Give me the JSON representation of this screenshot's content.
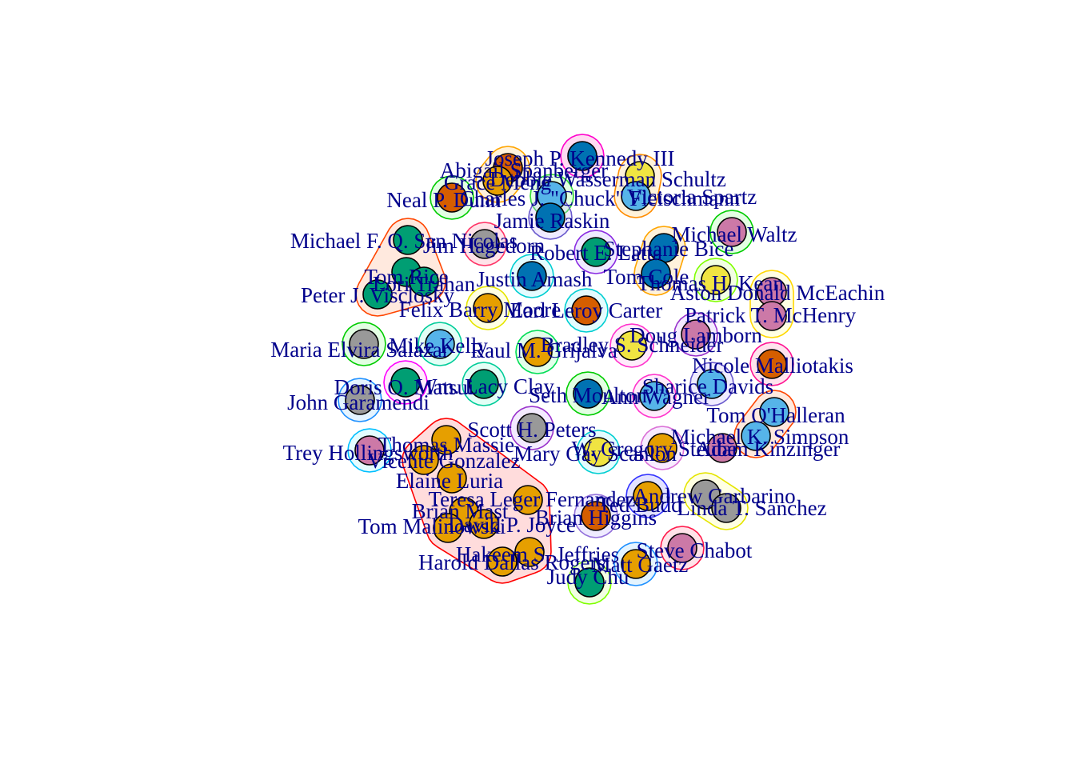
{
  "nodes": [
    {
      "id": "kennedy",
      "label": "Joseph P. Kennedy III",
      "color": "#0072b2"
    },
    {
      "id": "spanberger",
      "label": "Abigail Spanberger",
      "color": "#d55e00"
    },
    {
      "id": "wasserman",
      "label": "Debbie Wasserman Schultz",
      "color": "#f0e442"
    },
    {
      "id": "meng",
      "label": "Grace Meng",
      "color": "#e69f00"
    },
    {
      "id": "dunn",
      "label": "Neal P. Dunn",
      "color": "#d55e00"
    },
    {
      "id": "fleischmann",
      "label": "Charles J. \"Chuck\" Fleischmann",
      "color": "#56b4e9"
    },
    {
      "id": "spartz",
      "label": "Victoria Spartz",
      "color": "#56b4e9"
    },
    {
      "id": "raskin",
      "label": "Jamie Raskin",
      "color": "#0072b2"
    },
    {
      "id": "waltz",
      "label": "Michael Waltz",
      "color": "#cc79a7"
    },
    {
      "id": "sannicolas",
      "label": "Michael F. Q. San Nicolas",
      "color": "#009e73"
    },
    {
      "id": "hagedorn",
      "label": "Jim Hagedorn",
      "color": "#999999"
    },
    {
      "id": "stephanie",
      "label": "Stephanie Bice",
      "color": "#0072b2"
    },
    {
      "id": "latta",
      "label": "Robert E. Latta",
      "color": "#009e73"
    },
    {
      "id": "cole",
      "label": "Tom Cole",
      "color": "#0072b2"
    },
    {
      "id": "rice",
      "label": "Tom Rice",
      "color": "#009e73"
    },
    {
      "id": "trahan",
      "label": "Lori Trahan",
      "color": "#009e73"
    },
    {
      "id": "amash",
      "label": "Justin Amash",
      "color": "#0072b2"
    },
    {
      "id": "kean",
      "label": "Thomas H. Kean",
      "color": "#f0e442"
    },
    {
      "id": "mceachin",
      "label": "Aston Donald McEachin",
      "color": "#cc79a7"
    },
    {
      "id": "visclosky",
      "label": "Peter J. Visclosky",
      "color": "#009e73"
    },
    {
      "id": "barry",
      "label": "Felix Barry Moore",
      "color": "#e69f00"
    },
    {
      "id": "carter",
      "label": "Earl Leroy Carter",
      "color": "#d55e00"
    },
    {
      "id": "mchenry",
      "label": "Patrick T. McHenry",
      "color": "#cc79a7"
    },
    {
      "id": "lamborn",
      "label": "Doug Lamborn",
      "color": "#cc79a7"
    },
    {
      "id": "salazar",
      "label": "Maria Elvira Salazar",
      "color": "#999999"
    },
    {
      "id": "kelly",
      "label": "Mike Kelly",
      "color": "#56b4e9"
    },
    {
      "id": "grijalva",
      "label": "Raul M. Grijalva",
      "color": "#e69f00"
    },
    {
      "id": "schneider",
      "label": "Bradley S. Schneider",
      "color": "#f0e442"
    },
    {
      "id": "malliotakis",
      "label": "Nicole Malliotakis",
      "color": "#d55e00"
    },
    {
      "id": "davids",
      "label": "Sharice Davids",
      "color": "#56b4e9"
    },
    {
      "id": "watkins",
      "label": "Doris O. Matsui",
      "color": "#009e73"
    },
    {
      "id": "clay",
      "label": "Wm. Lacy Clay",
      "color": "#009e73"
    },
    {
      "id": "moulton",
      "label": "Seth Moulton",
      "color": "#0072b2"
    },
    {
      "id": "wagner",
      "label": "Ann Wagner",
      "color": "#56b4e9"
    },
    {
      "id": "garamendi",
      "label": "John Garamendi",
      "color": "#999999"
    },
    {
      "id": "ohalleran",
      "label": "Tom O'Halleran",
      "color": "#56b4e9"
    },
    {
      "id": "peters",
      "label": "Scott H. Peters",
      "color": "#999999"
    },
    {
      "id": "simpson",
      "label": "Michael K. Simpson",
      "color": "#56b4e9"
    },
    {
      "id": "massie",
      "label": "Thomas Massie",
      "color": "#e69f00"
    },
    {
      "id": "scanlon",
      "label": "Mary Gay Scanlon",
      "color": "#f0e442"
    },
    {
      "id": "grothman",
      "label": "W. Gregory Steube",
      "color": "#e69f00"
    },
    {
      "id": "kinzinger",
      "label": "Adam Kinzinger",
      "color": "#cc79a7"
    },
    {
      "id": "hollingsworth",
      "label": "Trey Hollingsworth",
      "color": "#cc79a7"
    },
    {
      "id": "gonzalez",
      "label": "Vicente Gonzalez",
      "color": "#e69f00"
    },
    {
      "id": "luria",
      "label": "Elaine Luria",
      "color": "#e69f00"
    },
    {
      "id": "garbarino",
      "label": "Andrew Garbarino",
      "color": "#999999"
    },
    {
      "id": "sanchez",
      "label": "Linda T. Sanchez",
      "color": "#999999"
    },
    {
      "id": "fernandez",
      "label": "Teresa Leger Fernandez",
      "color": "#e69f00"
    },
    {
      "id": "budd",
      "label": "Ted Budd",
      "color": "#e69f00"
    },
    {
      "id": "higgins",
      "label": "Brian Higgins",
      "color": "#d55e00"
    },
    {
      "id": "mast",
      "label": "Brian Mast",
      "color": "#e69f00"
    },
    {
      "id": "malinowski",
      "label": "Tom Malinowski",
      "color": "#e69f00"
    },
    {
      "id": "joyce",
      "label": "David P. Joyce",
      "color": "#e69f00"
    },
    {
      "id": "chabot",
      "label": "Steve Chabot",
      "color": "#cc79a7"
    },
    {
      "id": "jeffries",
      "label": "Hakeem S. Jeffries",
      "color": "#e69f00"
    },
    {
      "id": "rogers",
      "label": "Harold Dallas Rogers",
      "color": "#e69f00"
    },
    {
      "id": "gaetz",
      "label": "Matt Gaetz",
      "color": "#e69f00"
    },
    {
      "id": "chu",
      "label": "Judy Chu",
      "color": "#009e73"
    }
  ],
  "groups": [
    {
      "members": [
        "kennedy"
      ],
      "fill": "#ff7fd0",
      "stroke": "#ff00cc"
    },
    {
      "members": [
        "spanberger",
        "meng"
      ],
      "fill": "#ffd27f",
      "stroke": "#ffa500"
    },
    {
      "members": [
        "wasserman",
        "spartz"
      ],
      "fill": "#ffd27f",
      "stroke": "#ff8c00"
    },
    {
      "members": [
        "dunn"
      ],
      "fill": "#9cff9c",
      "stroke": "#00cc00"
    },
    {
      "members": [
        "fleischmann"
      ],
      "fill": "#9cff9c",
      "stroke": "#33dd33"
    },
    {
      "members": [
        "raskin"
      ],
      "fill": "#c7b8ff",
      "stroke": "#6a5acd"
    },
    {
      "members": [
        "waltz"
      ],
      "fill": "#9cff9c",
      "stroke": "#00cc00"
    },
    {
      "members": [
        "sannicolas",
        "rice",
        "trahan",
        "visclosky"
      ],
      "fill": "#ffb08a",
      "stroke": "#ff4500"
    },
    {
      "members": [
        "hagedorn"
      ],
      "fill": "#ff9ab0",
      "stroke": "#ff3366"
    },
    {
      "members": [
        "stephanie",
        "cole"
      ],
      "fill": "#ffd27f",
      "stroke": "#ffa500"
    },
    {
      "members": [
        "latta"
      ],
      "fill": "#c7b8ff",
      "stroke": "#8a2be2"
    },
    {
      "members": [
        "amash"
      ],
      "fill": "#9ff5ff",
      "stroke": "#00ced1"
    },
    {
      "members": [
        "kean"
      ],
      "fill": "#d0ff9c",
      "stroke": "#7fff00"
    },
    {
      "members": [
        "mceachin",
        "mchenry"
      ],
      "fill": "#ffff9c",
      "stroke": "#ffd700"
    },
    {
      "members": [
        "barry"
      ],
      "fill": "#ffff9c",
      "stroke": "#e5e500"
    },
    {
      "members": [
        "carter"
      ],
      "fill": "#9ff5ff",
      "stroke": "#00ced1"
    },
    {
      "members": [
        "lamborn"
      ],
      "fill": "#d9b8ff",
      "stroke": "#9932cc"
    },
    {
      "members": [
        "salazar"
      ],
      "fill": "#9cff9c",
      "stroke": "#00cc00"
    },
    {
      "members": [
        "kelly"
      ],
      "fill": "#9cffe0",
      "stroke": "#00cc99"
    },
    {
      "members": [
        "grijalva"
      ],
      "fill": "#9cffb8",
      "stroke": "#00dd55"
    },
    {
      "members": [
        "schneider"
      ],
      "fill": "#ffb8f0",
      "stroke": "#ff33cc"
    },
    {
      "members": [
        "malliotakis"
      ],
      "fill": "#ff9ac0",
      "stroke": "#ff1493"
    },
    {
      "members": [
        "davids"
      ],
      "fill": "#c7b8ff",
      "stroke": "#6a5acd"
    },
    {
      "members": [
        "watkins"
      ],
      "fill": "#ffb8f0",
      "stroke": "#ff00ff"
    },
    {
      "members": [
        "clay"
      ],
      "fill": "#9cffe0",
      "stroke": "#00cc99"
    },
    {
      "members": [
        "moulton"
      ],
      "fill": "#9cff9c",
      "stroke": "#00cc00"
    },
    {
      "members": [
        "wagner"
      ],
      "fill": "#ffb8f0",
      "stroke": "#ff33cc"
    },
    {
      "members": [
        "garamendi"
      ],
      "fill": "#9fd8ff",
      "stroke": "#1e90ff"
    },
    {
      "members": [
        "ohalleran",
        "simpson"
      ],
      "fill": "#ffb08a",
      "stroke": "#ff4500"
    },
    {
      "members": [
        "peters"
      ],
      "fill": "#d9b8ff",
      "stroke": "#9932cc"
    },
    {
      "members": [
        "scanlon"
      ],
      "fill": "#9ff5ff",
      "stroke": "#00ced1"
    },
    {
      "members": [
        "grothman"
      ],
      "fill": "#e5b8ff",
      "stroke": "#da70d6"
    },
    {
      "members": [
        "hollingsworth"
      ],
      "fill": "#9ff5ff",
      "stroke": "#00bfff"
    },
    {
      "members": [
        "massie",
        "gonzalez",
        "luria",
        "fernandez",
        "mast",
        "malinowski",
        "joyce",
        "jeffries",
        "rogers"
      ],
      "fill": "#ff8080",
      "stroke": "#ff0000"
    },
    {
      "members": [
        "garbarino",
        "sanchez"
      ],
      "fill": "#ffff9c",
      "stroke": "#e5e500"
    },
    {
      "members": [
        "budd"
      ],
      "fill": "#9c9cff",
      "stroke": "#3333ff"
    },
    {
      "members": [
        "higgins"
      ],
      "fill": "#c7b8ff",
      "stroke": "#9370db"
    },
    {
      "members": [
        "chabot"
      ],
      "fill": "#ff9ab0",
      "stroke": "#ff1a4b"
    },
    {
      "members": [
        "gaetz"
      ],
      "fill": "#9fd8ff",
      "stroke": "#1e90ff"
    },
    {
      "members": [
        "chu"
      ],
      "fill": "#d0ff9c",
      "stroke": "#7fff00"
    }
  ]
}
